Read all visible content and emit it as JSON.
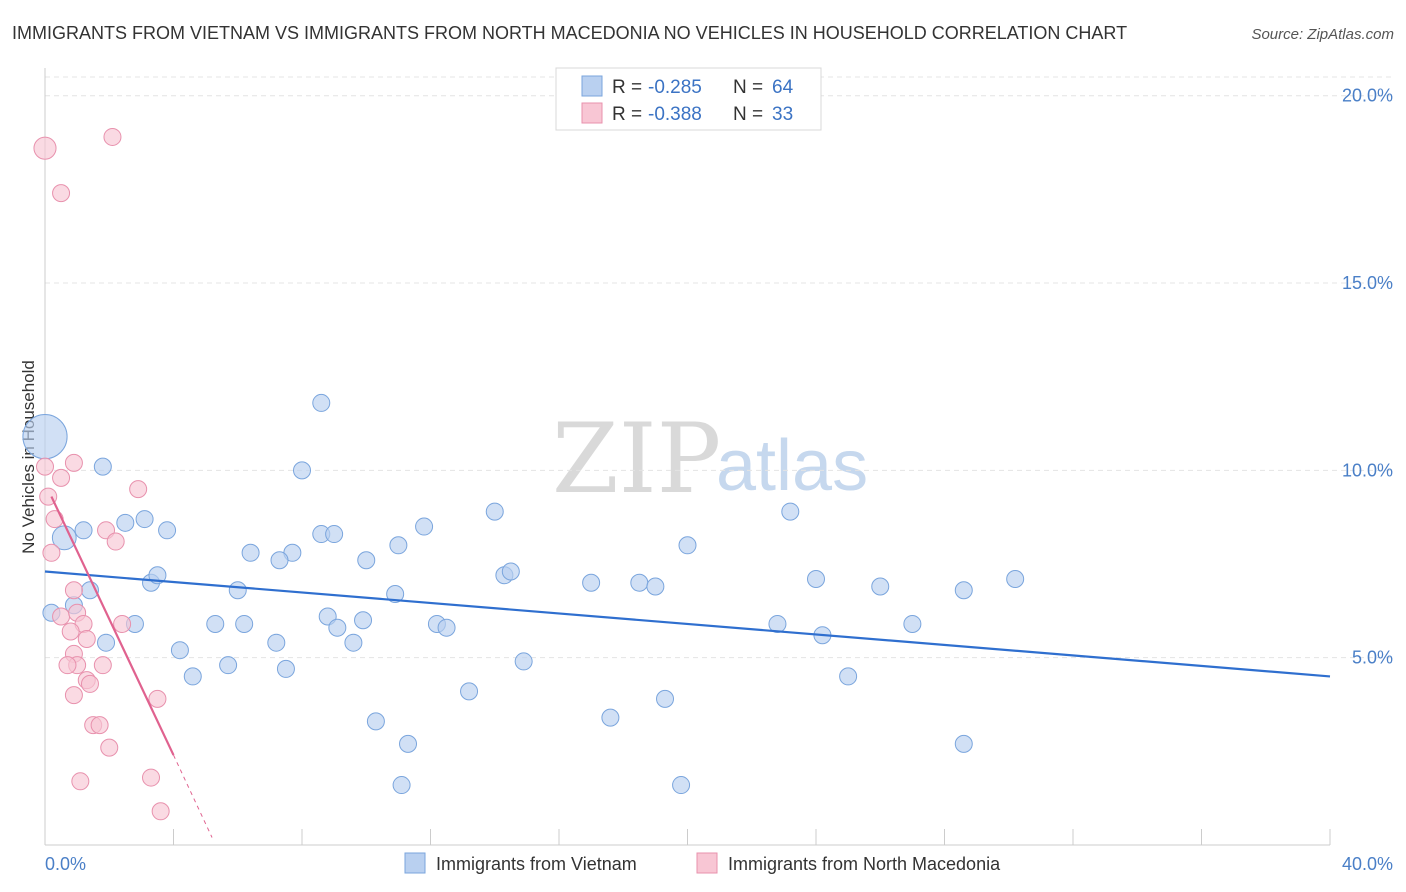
{
  "chart_data": {
    "type": "scatter",
    "title": "IMMIGRANTS FROM VIETNAM VS IMMIGRANTS FROM NORTH MACEDONIA NO VEHICLES IN HOUSEHOLD CORRELATION CHART",
    "source": "Source: ZipAtlas.com",
    "ylabel": "No Vehicles in Household",
    "xlim": [
      0,
      40
    ],
    "ylim": [
      0,
      20.5
    ],
    "x_tick_labels": [
      "0.0%",
      "40.0%"
    ],
    "y_ticks": [
      {
        "value": 5,
        "label": "5.0%"
      },
      {
        "value": 10,
        "label": "10.0%"
      },
      {
        "value": 15,
        "label": "15.0%"
      },
      {
        "value": 20,
        "label": "20.0%"
      }
    ],
    "watermark": {
      "zip": "ZIP",
      "atlas": "atlas"
    },
    "colors": {
      "vietnam_fill": "#b9d0f0",
      "vietnam_stroke": "#7aa5dd",
      "vietnam_line": "#2f6fcf",
      "macedonia_fill": "#f8c6d4",
      "macedonia_stroke": "#e891ad",
      "macedonia_line": "#e0628f",
      "accent_text": "#3b73c4"
    },
    "legend": {
      "rows": [
        {
          "r_label": "R = ",
          "r_value": "-0.285",
          "n_label": "N = ",
          "n_value": "64"
        },
        {
          "r_label": "R = ",
          "r_value": "-0.388",
          "n_label": "N = ",
          "n_value": "33"
        }
      ]
    },
    "series": [
      {
        "name": "Immigrants from Vietnam",
        "trend": {
          "x0": 0,
          "y0": 7.3,
          "x1": 40,
          "y1": 4.5
        },
        "points": [
          [
            0,
            10.9,
            2.6
          ],
          [
            0.6,
            8.2,
            1.4
          ],
          [
            1.2,
            8.4,
            1
          ],
          [
            1.8,
            10.1,
            1
          ],
          [
            3.1,
            8.7,
            1
          ],
          [
            2.5,
            8.6,
            1
          ],
          [
            3.8,
            8.4,
            1
          ],
          [
            8.0,
            10.0,
            1
          ],
          [
            8.6,
            8.3,
            1
          ],
          [
            7.7,
            7.8,
            1
          ],
          [
            6.4,
            7.8,
            1
          ],
          [
            7.3,
            7.6,
            1
          ],
          [
            11.0,
            8.0,
            1
          ],
          [
            11.8,
            8.5,
            1
          ],
          [
            9.0,
            8.3,
            1
          ],
          [
            10.0,
            7.6,
            1
          ],
          [
            14.0,
            8.9,
            1
          ],
          [
            14.3,
            7.2,
            1
          ],
          [
            14.5,
            7.3,
            1
          ],
          [
            17.0,
            7.0,
            1
          ],
          [
            18.5,
            7.0,
            1
          ],
          [
            19.0,
            6.9,
            1
          ],
          [
            20.0,
            8.0,
            1
          ],
          [
            23.2,
            8.9,
            1
          ],
          [
            24.0,
            7.1,
            1
          ],
          [
            26.0,
            6.9,
            1
          ],
          [
            8.6,
            11.8,
            1
          ],
          [
            1.4,
            6.8,
            1
          ],
          [
            3.3,
            7.0,
            1
          ],
          [
            3.5,
            7.2,
            1
          ],
          [
            6.0,
            6.8,
            1
          ],
          [
            10.9,
            6.7,
            1
          ],
          [
            0.9,
            6.4,
            1
          ],
          [
            0.2,
            6.2,
            1
          ],
          [
            2.8,
            5.9,
            1
          ],
          [
            5.3,
            5.9,
            1
          ],
          [
            6.2,
            5.9,
            1
          ],
          [
            8.8,
            6.1,
            1
          ],
          [
            9.1,
            5.8,
            1
          ],
          [
            9.9,
            6.0,
            1
          ],
          [
            12.2,
            5.9,
            1
          ],
          [
            12.5,
            5.8,
            1
          ],
          [
            1.9,
            5.4,
            1
          ],
          [
            4.2,
            5.2,
            1
          ],
          [
            7.2,
            5.4,
            1
          ],
          [
            9.6,
            5.4,
            1
          ],
          [
            5.7,
            4.8,
            1
          ],
          [
            7.5,
            4.7,
            1
          ],
          [
            4.6,
            4.5,
            1
          ],
          [
            14.9,
            4.9,
            1
          ],
          [
            22.8,
            5.9,
            1
          ],
          [
            24.2,
            5.6,
            1
          ],
          [
            25.0,
            4.5,
            1
          ],
          [
            27.0,
            5.9,
            1
          ],
          [
            13.2,
            4.1,
            1
          ],
          [
            10.3,
            3.3,
            1
          ],
          [
            17.6,
            3.4,
            1
          ],
          [
            19.3,
            3.9,
            1
          ],
          [
            11.3,
            2.7,
            1
          ],
          [
            28.6,
            2.7,
            1
          ],
          [
            11.1,
            1.6,
            1
          ],
          [
            19.8,
            1.6,
            1
          ],
          [
            28.6,
            6.8,
            1
          ],
          [
            30.2,
            7.1,
            1
          ]
        ]
      },
      {
        "name": "Immigrants from North Macedonia",
        "trend": {
          "x0": 0.2,
          "y0": 9.3,
          "x1": 4.0,
          "y1": 2.4,
          "dash_x1": 5.2,
          "dash_y1": 0.2
        },
        "points": [
          [
            0,
            18.6,
            1.3
          ],
          [
            2.1,
            18.9,
            1
          ],
          [
            0.5,
            17.4,
            1
          ],
          [
            0,
            10.1,
            1
          ],
          [
            0.5,
            9.8,
            1
          ],
          [
            0.9,
            10.2,
            1
          ],
          [
            2.9,
            9.5,
            1
          ],
          [
            0.3,
            8.7,
            1
          ],
          [
            0.1,
            9.3,
            1
          ],
          [
            1.9,
            8.4,
            1
          ],
          [
            2.2,
            8.1,
            1
          ],
          [
            0.2,
            7.8,
            1
          ],
          [
            0.9,
            6.8,
            1
          ],
          [
            0.5,
            6.1,
            1
          ],
          [
            1.0,
            6.2,
            1
          ],
          [
            1.2,
            5.9,
            1
          ],
          [
            2.4,
            5.9,
            1
          ],
          [
            0.8,
            5.7,
            1
          ],
          [
            1.3,
            5.5,
            1
          ],
          [
            0.9,
            5.1,
            1
          ],
          [
            1.0,
            4.8,
            1
          ],
          [
            0.7,
            4.8,
            1
          ],
          [
            1.8,
            4.8,
            1
          ],
          [
            1.3,
            4.4,
            1
          ],
          [
            1.4,
            4.3,
            1
          ],
          [
            0.9,
            4.0,
            1
          ],
          [
            3.5,
            3.9,
            1
          ],
          [
            1.5,
            3.2,
            1
          ],
          [
            1.7,
            3.2,
            1
          ],
          [
            2.0,
            2.6,
            1
          ],
          [
            1.1,
            1.7,
            1
          ],
          [
            3.3,
            1.8,
            1
          ],
          [
            3.6,
            0.9,
            1
          ]
        ]
      }
    ]
  }
}
